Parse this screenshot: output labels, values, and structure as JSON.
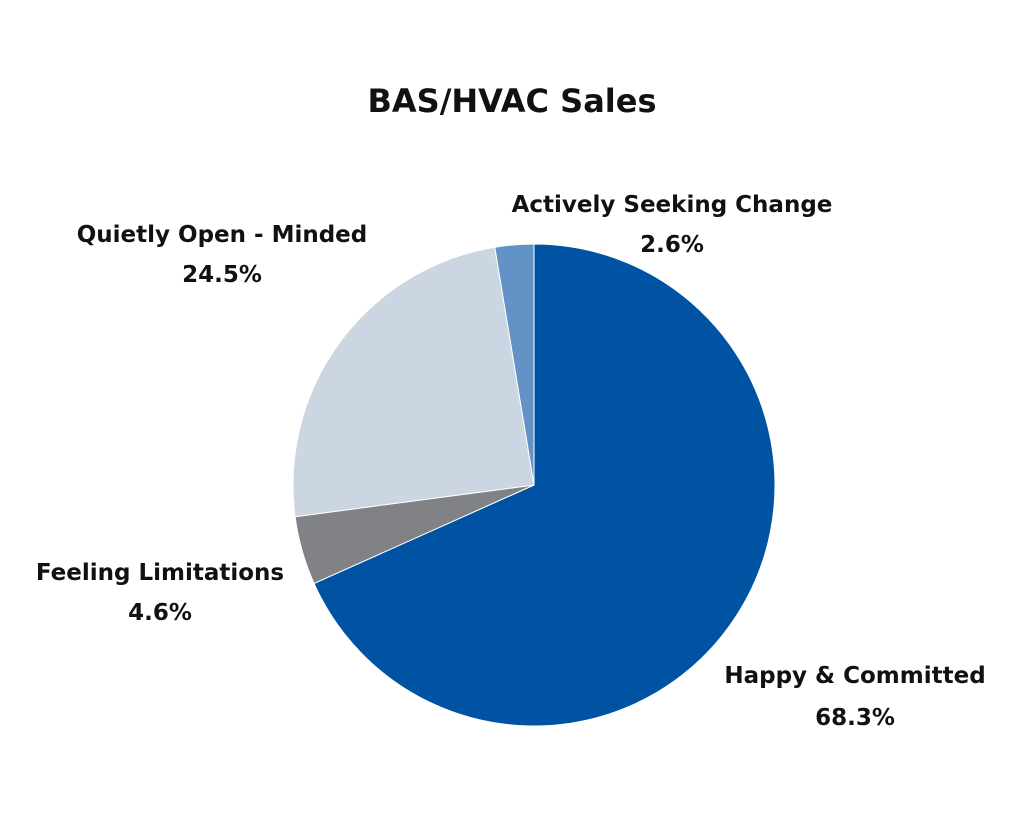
{
  "chart_data": {
    "type": "pie",
    "title": "BAS/HVAC Sales",
    "start_angle_deg": 0,
    "direction": "clockwise",
    "slices": [
      {
        "label": "Happy & Committed",
        "value": 68.3,
        "value_label": "68.3%",
        "color": "#0052A3"
      },
      {
        "label": "Feeling Limitations",
        "value": 4.6,
        "value_label": "4.6%",
        "color": "#808285"
      },
      {
        "label": "Quietly Open - Minded",
        "value": 24.5,
        "value_label": "24.5%",
        "color": "#CCD6E2"
      },
      {
        "label": "Actively Seeking Change",
        "value": 2.6,
        "value_label": "2.6%",
        "color": "#6393C6"
      }
    ],
    "legend": "none",
    "data_labels": "outside"
  }
}
